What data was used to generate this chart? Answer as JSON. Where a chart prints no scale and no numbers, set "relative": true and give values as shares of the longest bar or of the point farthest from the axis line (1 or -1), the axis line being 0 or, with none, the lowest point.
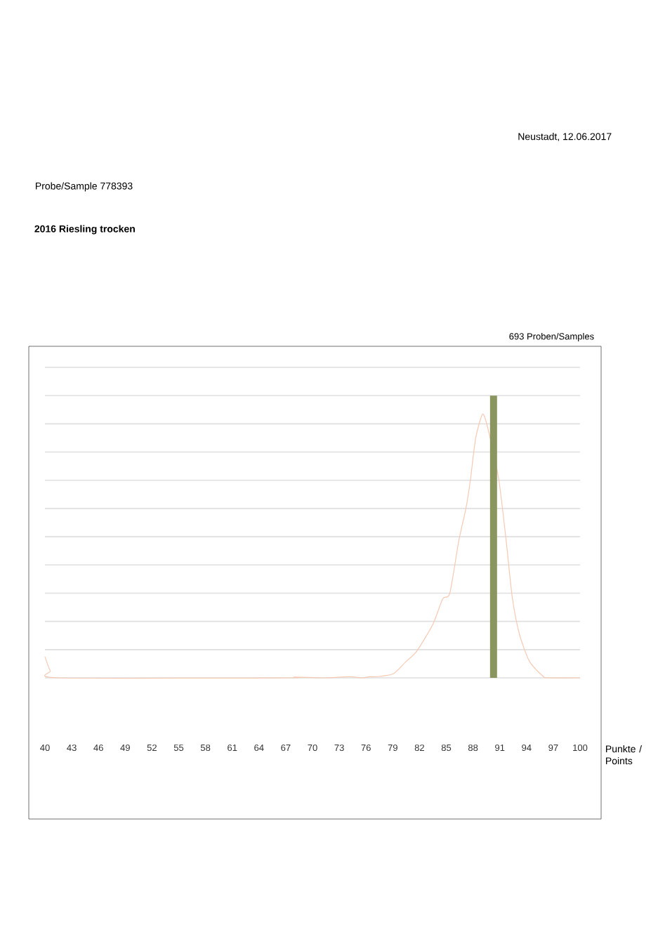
{
  "chart_data": {
    "type": "line",
    "title": "2016 Riesling trocken",
    "subtitle": "Probe/Sample 778393",
    "xlabel": "Punkte / Points",
    "annotations": [
      "Neustadt, 12.06.2017",
      "693 Proben/Samples"
    ],
    "relative": true,
    "xlim": [
      40,
      100
    ],
    "xticks": [
      40,
      43,
      46,
      49,
      52,
      55,
      58,
      61,
      64,
      67,
      70,
      73,
      76,
      79,
      82,
      85,
      88,
      91,
      94,
      97,
      100
    ],
    "grid": "y",
    "series": [
      {
        "color": "#f5c9b4",
        "x": [
          40,
          40.6,
          41.5,
          67,
          68,
          71.3,
          74.1,
          75.5,
          76.4,
          77.5,
          79.1,
          80.4,
          81.7,
          83.5,
          84.6,
          85.4,
          86.4,
          87.2,
          87.7,
          88.3,
          89.1,
          89.8,
          90.9,
          91.7,
          92.4,
          93.2,
          94.3,
          95.8,
          96.4,
          100
        ],
        "values": [
          0.075,
          0.025,
          0,
          0,
          0.003,
          0,
          0.004,
          0,
          0.004,
          0.005,
          0.015,
          0.055,
          0.095,
          0.19,
          0.28,
          0.3,
          0.485,
          0.6,
          0.7,
          0.85,
          0.935,
          0.866,
          0.7,
          0.49,
          0.285,
          0.155,
          0.06,
          0.007,
          0,
          0
        ]
      },
      {
        "type": "bar",
        "color": "#8a9560",
        "x": [
          90.3
        ],
        "values": [
          1
        ]
      }
    ]
  }
}
